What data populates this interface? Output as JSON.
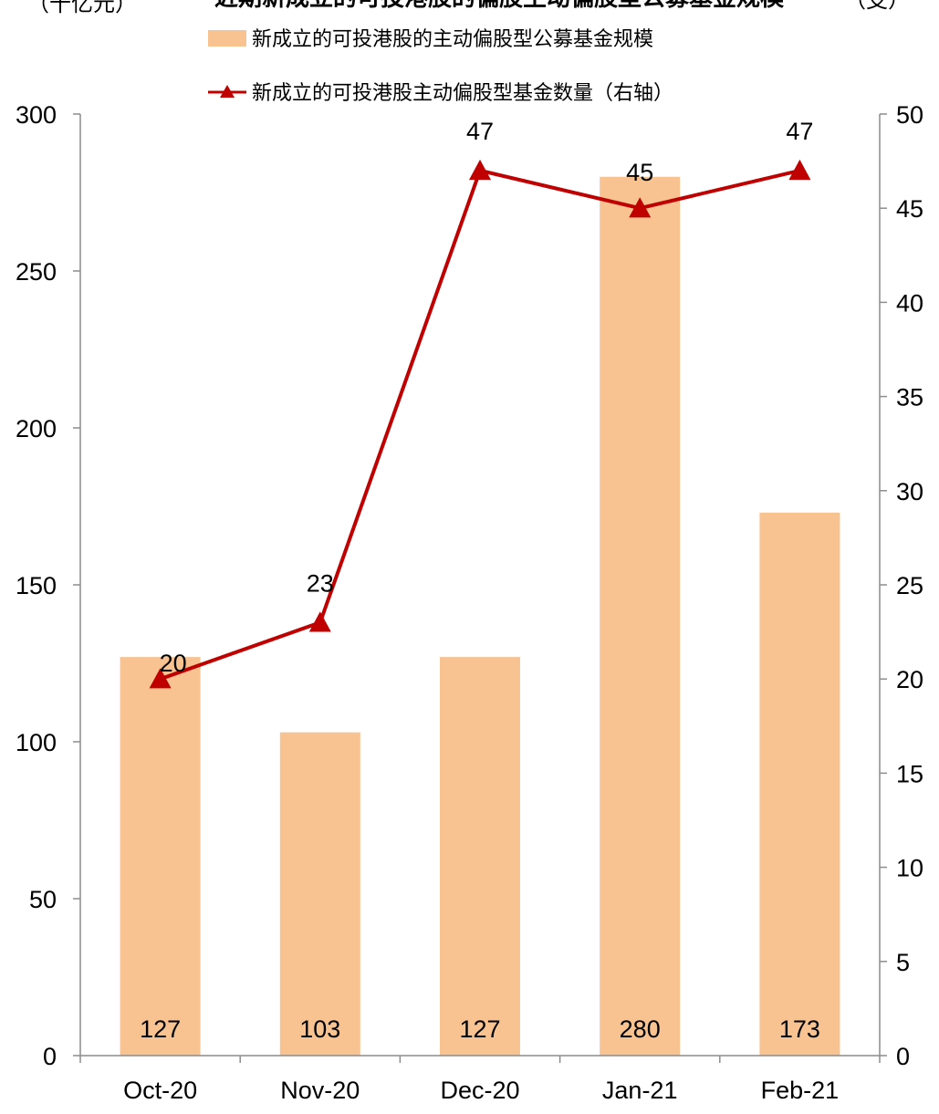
{
  "chart_data": {
    "type": "bar",
    "title": "近期新成立的可投港股的偏股主动偏股型公募基金规模",
    "left_unit": "（十亿元）",
    "right_unit": "（支）",
    "categories": [
      "Oct-20",
      "Nov-20",
      "Dec-20",
      "Jan-21",
      "Feb-21"
    ],
    "series": [
      {
        "name": "新成立的可投港股的主动偏股型公募基金规模",
        "type": "bar",
        "axis": "left",
        "values": [
          127,
          103,
          127,
          280,
          173
        ],
        "labels": [
          "127",
          "103",
          "127",
          "280",
          "173"
        ],
        "color": "#F8C291"
      },
      {
        "name": "新成立的可投港股主动偏股型基金数量（右轴）",
        "type": "line",
        "axis": "right",
        "marker": "triangle",
        "values": [
          20,
          23,
          47,
          45,
          47
        ],
        "labels": [
          "20",
          "23",
          "47",
          "45",
          "47"
        ],
        "color": "#C00000"
      }
    ],
    "y_left": {
      "range": [
        0,
        300
      ],
      "ticks": [
        "0",
        "50",
        "100",
        "150",
        "200",
        "250",
        "300"
      ]
    },
    "y_right": {
      "range": [
        0,
        50
      ],
      "ticks": [
        "0",
        "5",
        "10",
        "15",
        "20",
        "25",
        "30",
        "35",
        "40",
        "45",
        "50"
      ]
    },
    "grid": false,
    "legend_position": "top"
  }
}
